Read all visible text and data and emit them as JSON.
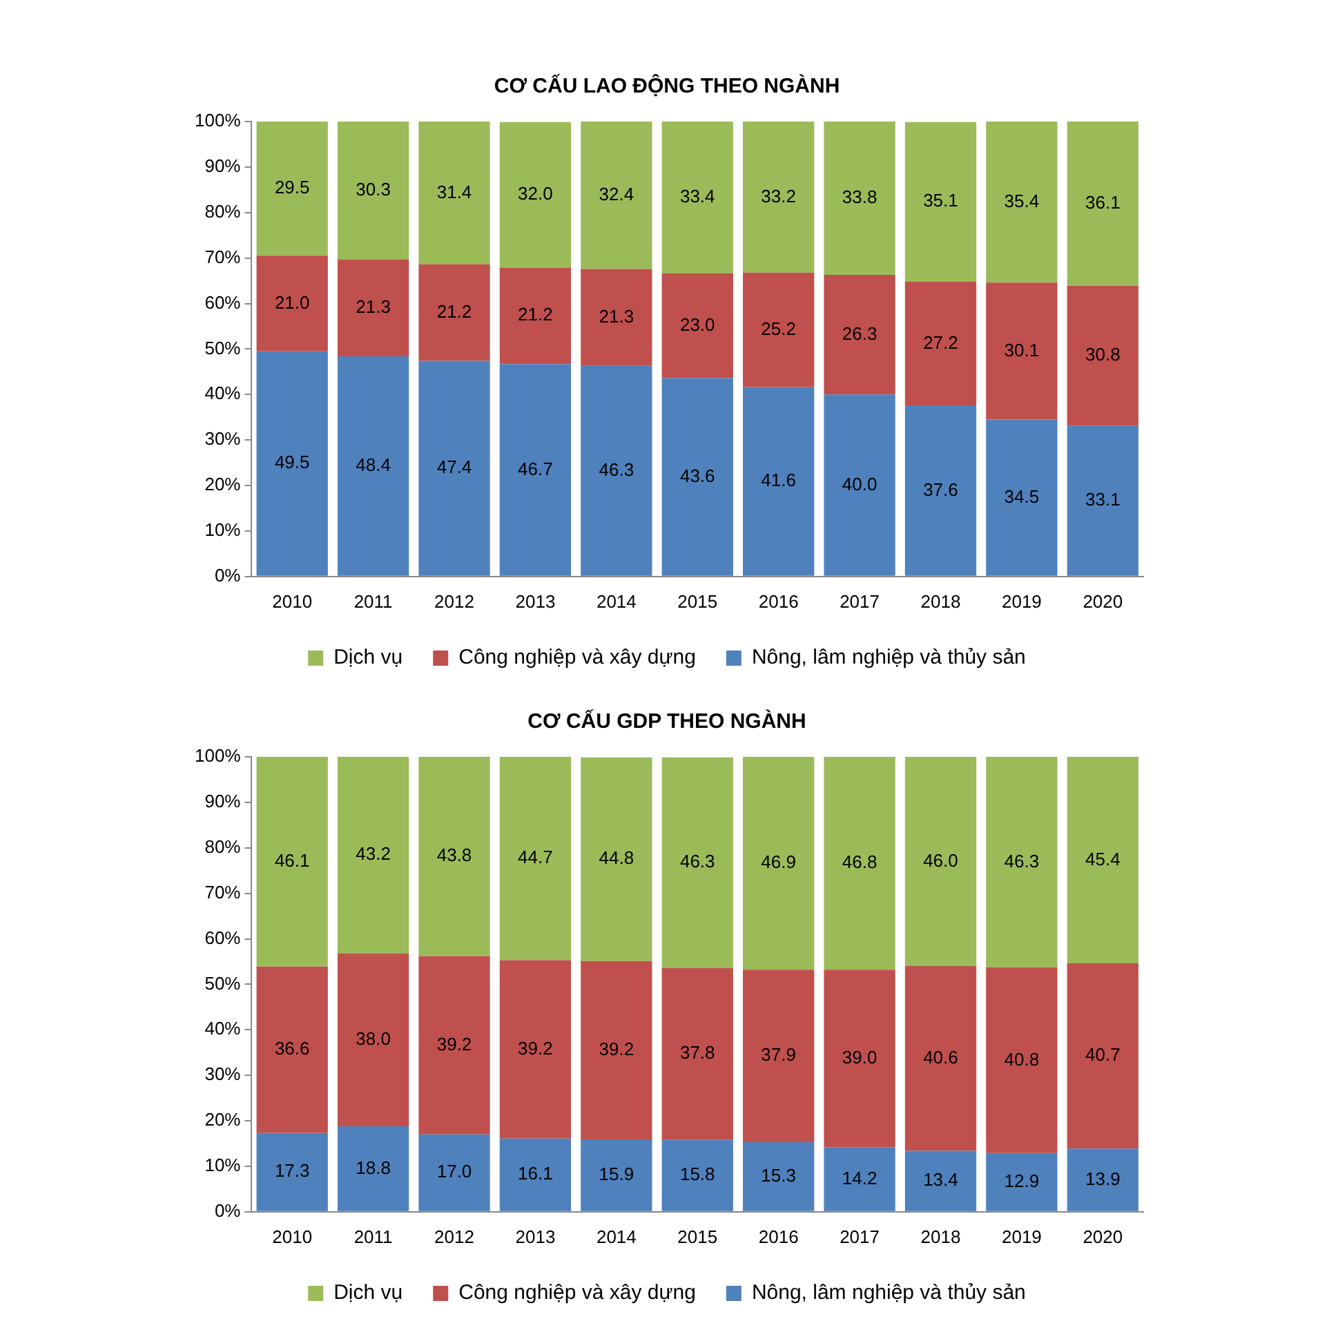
{
  "chart_data": [
    {
      "type": "bar",
      "title": "CƠ CẤU LAO ĐỘNG THEO NGÀNH",
      "stacked": true,
      "legend": "bottom",
      "grid": false,
      "ylim": [
        0,
        100
      ],
      "yticks": [
        {
          "value": 0,
          "label": "0%"
        },
        {
          "value": 10,
          "label": "10%"
        },
        {
          "value": 20,
          "label": "20%"
        },
        {
          "value": 30,
          "label": "30%"
        },
        {
          "value": 40,
          "label": "40%"
        },
        {
          "value": 50,
          "label": "50%"
        },
        {
          "value": 60,
          "label": "60%"
        },
        {
          "value": 70,
          "label": "70%"
        },
        {
          "value": 80,
          "label": "80%"
        },
        {
          "value": 90,
          "label": "90%"
        },
        {
          "value": 100,
          "label": "100%"
        }
      ],
      "categories": [
        "2010",
        "2011",
        "2012",
        "2013",
        "2014",
        "2015",
        "2016",
        "2017",
        "2018",
        "2019",
        "2020"
      ],
      "series": [
        {
          "name": "Nông, lâm nghiệp và thủy sản",
          "color": "#4f81bd",
          "values": [
            49.5,
            48.4,
            47.4,
            46.7,
            46.3,
            43.6,
            41.6,
            40.0,
            37.6,
            34.5,
            33.1
          ],
          "value_labels": [
            "49.5",
            "48.4",
            "47.4",
            "46.7",
            "46.3",
            "43.6",
            "41.6",
            "40.0",
            "37.6",
            "34.5",
            "33.1"
          ]
        },
        {
          "name": "Công nghiệp và xây dựng",
          "color": "#c0504d",
          "values": [
            21.0,
            21.3,
            21.2,
            21.2,
            21.3,
            23.0,
            25.2,
            26.3,
            27.2,
            30.1,
            30.8
          ],
          "value_labels": [
            "21.0",
            "21.3",
            "21.2",
            "21.2",
            "21.3",
            "23.0",
            "25.2",
            "26.3",
            "27.2",
            "30.1",
            "30.8"
          ]
        },
        {
          "name": "Dịch vụ",
          "color": "#9bbb59",
          "values": [
            29.5,
            30.3,
            31.4,
            32.0,
            32.4,
            33.4,
            33.2,
            33.8,
            35.1,
            35.4,
            36.1
          ],
          "value_labels": [
            "29.5",
            "30.3",
            "31.4",
            "32.0",
            "32.4",
            "33.4",
            "33.2",
            "33.8",
            "35.1",
            "35.4",
            "36.1"
          ]
        }
      ]
    },
    {
      "type": "bar",
      "title": "CƠ CẤU GDP THEO NGÀNH",
      "stacked": true,
      "legend": "bottom",
      "grid": false,
      "ylim": [
        0,
        100
      ],
      "yticks": [
        {
          "value": 0,
          "label": "0%"
        },
        {
          "value": 10,
          "label": "10%"
        },
        {
          "value": 20,
          "label": "20%"
        },
        {
          "value": 30,
          "label": "30%"
        },
        {
          "value": 40,
          "label": "40%"
        },
        {
          "value": 50,
          "label": "50%"
        },
        {
          "value": 60,
          "label": "60%"
        },
        {
          "value": 70,
          "label": "70%"
        },
        {
          "value": 80,
          "label": "80%"
        },
        {
          "value": 90,
          "label": "90%"
        },
        {
          "value": 100,
          "label": "100%"
        }
      ],
      "categories": [
        "2010",
        "2011",
        "2012",
        "2013",
        "2014",
        "2015",
        "2016",
        "2017",
        "2018",
        "2019",
        "2020"
      ],
      "series": [
        {
          "name": "Nông, lâm nghiệp và thủy sản",
          "color": "#4f81bd",
          "values": [
            17.3,
            18.8,
            17.0,
            16.1,
            15.9,
            15.8,
            15.3,
            14.2,
            13.4,
            12.9,
            13.9
          ],
          "value_labels": [
            "17.3",
            "18.8",
            "17.0",
            "16.1",
            "15.9",
            "15.8",
            "15.3",
            "14.2",
            "13.4",
            "12.9",
            "13.9"
          ]
        },
        {
          "name": "Công nghiệp và xây dựng",
          "color": "#c0504d",
          "values": [
            36.6,
            38.0,
            39.2,
            39.2,
            39.2,
            37.8,
            37.9,
            39.0,
            40.6,
            40.8,
            40.7
          ],
          "value_labels": [
            "36.6",
            "38.0",
            "39.2",
            "39.2",
            "39.2",
            "37.8",
            "37.9",
            "39.0",
            "40.6",
            "40.8",
            "40.7"
          ]
        },
        {
          "name": "Dịch vụ",
          "color": "#9bbb59",
          "values": [
            46.1,
            43.2,
            43.8,
            44.7,
            44.8,
            46.3,
            46.9,
            46.8,
            46.0,
            46.3,
            45.4
          ],
          "value_labels": [
            "46.1",
            "43.2",
            "43.8",
            "44.7",
            "44.8",
            "46.3",
            "46.9",
            "46.8",
            "46.0",
            "46.3",
            "45.4"
          ]
        }
      ]
    }
  ]
}
